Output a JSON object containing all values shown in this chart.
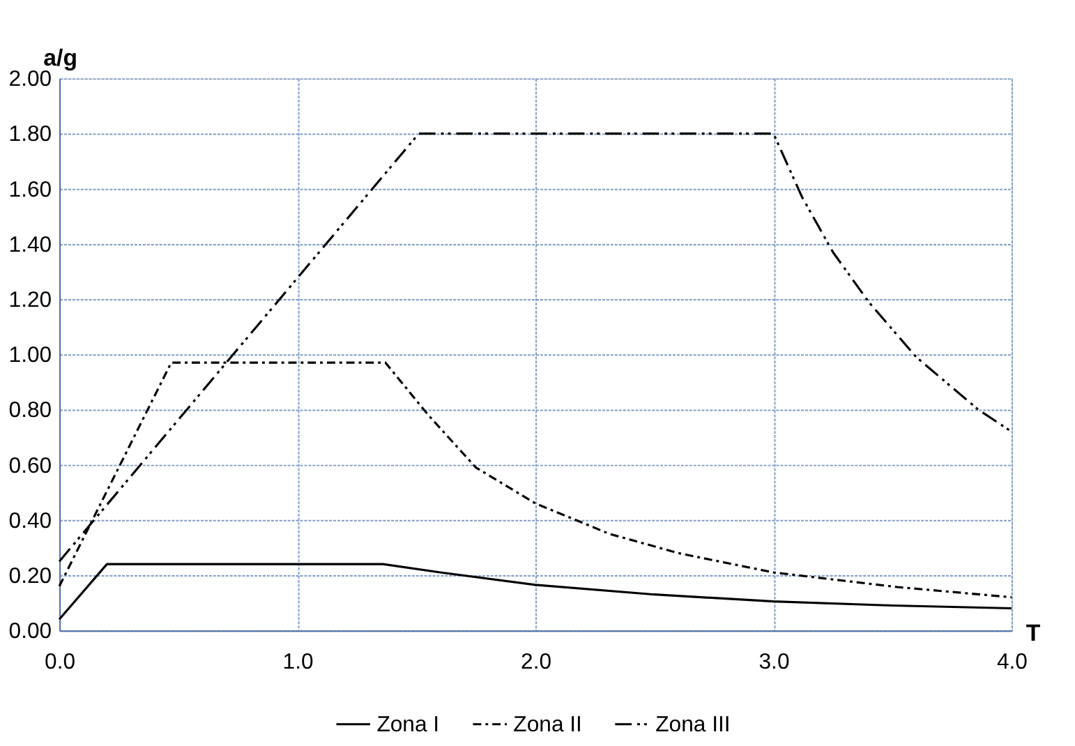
{
  "chart_data": {
    "type": "line",
    "xlabel": "T",
    "ylabel": "a/g",
    "xlim": [
      0,
      4
    ],
    "xticks": [
      {
        "value": 0,
        "label": "0.0"
      },
      {
        "value": 1,
        "label": "1.0"
      },
      {
        "value": 2,
        "label": "2.0"
      },
      {
        "value": 3,
        "label": "3.0"
      },
      {
        "value": 4,
        "label": "4.0"
      }
    ],
    "ylim": [
      0,
      2
    ],
    "yticks": [
      {
        "value": 0,
        "label": "0.00"
      },
      {
        "value": 0.2,
        "label": "0.20"
      },
      {
        "value": 0.4,
        "label": "0.40"
      },
      {
        "value": 0.6,
        "label": "0.60"
      },
      {
        "value": 0.8,
        "label": "0.80"
      },
      {
        "value": 1,
        "label": "1.00"
      },
      {
        "value": 1.2,
        "label": "1.20"
      },
      {
        "value": 1.4,
        "label": "1.40"
      },
      {
        "value": 1.6,
        "label": "1.60"
      },
      {
        "value": 1.8,
        "label": "1.80"
      },
      {
        "value": 2,
        "label": "2.00"
      }
    ],
    "grid": true,
    "legend": "bottom",
    "marker": "none",
    "series": [
      {
        "name": "Zona I",
        "color": "#000000",
        "line_style": "solid",
        "x": [
          0,
          0.2,
          1.36,
          1.6,
          2.0,
          2.5,
          3.0,
          3.5,
          4.0
        ],
        "values": [
          0.04,
          0.24,
          0.24,
          0.21,
          0.165,
          0.13,
          0.105,
          0.09,
          0.08
        ]
      },
      {
        "name": "Zona II",
        "color": "#000000",
        "line_style": "dashed",
        "x": [
          0,
          0.47,
          1.37,
          1.55,
          1.75,
          2.0,
          2.31,
          2.6,
          3.0,
          3.52,
          4.0
        ],
        "values": [
          0.16,
          0.97,
          0.97,
          0.78,
          0.59,
          0.46,
          0.35,
          0.28,
          0.21,
          0.157,
          0.12
        ]
      },
      {
        "name": "Zona III",
        "color": "#000000",
        "line_style": "dashed",
        "x": [
          0,
          1.51,
          3.0,
          3.12,
          3.25,
          3.4,
          3.6,
          3.86,
          4.0
        ],
        "values": [
          0.25,
          1.8,
          1.8,
          1.57,
          1.37,
          1.19,
          0.99,
          0.8,
          0.72
        ]
      }
    ]
  }
}
